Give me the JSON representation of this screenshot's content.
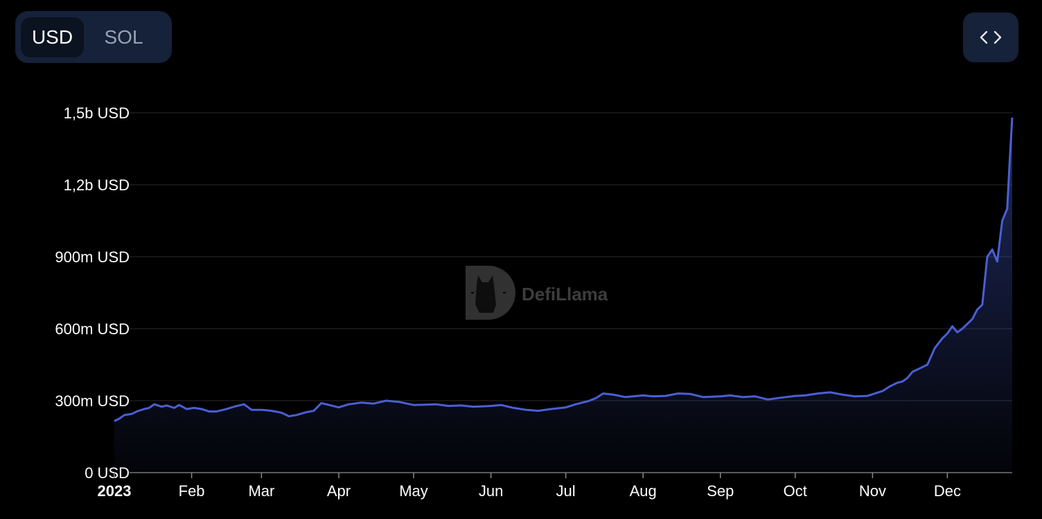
{
  "toolbar": {
    "currency_toggle": {
      "options": [
        "USD",
        "SOL"
      ],
      "selected": "USD"
    },
    "embed_icon": "code-brackets-icon"
  },
  "watermark": {
    "text": "DefiLlama",
    "logo_icon": "defillama-logo-icon"
  },
  "colors": {
    "background": "#000000",
    "line": "#4a5fd6",
    "fill_top": "#3a4ea8",
    "grid": "#2a2a2a",
    "toggle_bg": "#16213a",
    "toggle_active_bg": "#0b1220"
  },
  "chart_data": {
    "type": "area",
    "title": "",
    "xlabel": "",
    "ylabel": "",
    "ylim": [
      0,
      1500000000
    ],
    "y_ticks": [
      {
        "value": 0,
        "label": "0 USD"
      },
      {
        "value": 300000000,
        "label": "300m USD"
      },
      {
        "value": 600000000,
        "label": "600m USD"
      },
      {
        "value": 900000000,
        "label": "900m USD"
      },
      {
        "value": 1200000000,
        "label": "1,2b USD"
      },
      {
        "value": 1500000000,
        "label": "1,5b USD"
      }
    ],
    "x_ticks": [
      {
        "date": "2023-01-01",
        "label": "2023",
        "bold": true
      },
      {
        "date": "2023-02-01",
        "label": "Feb"
      },
      {
        "date": "2023-03-01",
        "label": "Mar"
      },
      {
        "date": "2023-04-01",
        "label": "Apr"
      },
      {
        "date": "2023-05-01",
        "label": "May"
      },
      {
        "date": "2023-06-01",
        "label": "Jun"
      },
      {
        "date": "2023-07-01",
        "label": "Jul"
      },
      {
        "date": "2023-08-01",
        "label": "Aug"
      },
      {
        "date": "2023-09-01",
        "label": "Sep"
      },
      {
        "date": "2023-10-01",
        "label": "Oct"
      },
      {
        "date": "2023-11-01",
        "label": "Nov"
      },
      {
        "date": "2023-12-01",
        "label": "Dec"
      }
    ],
    "xlim": [
      "2023-01-01",
      "2023-12-27"
    ],
    "grid": true,
    "series": [
      {
        "x": [
          "2023-01-01",
          "2023-01-03",
          "2023-01-05",
          "2023-01-08",
          "2023-01-10",
          "2023-01-13",
          "2023-01-15",
          "2023-01-17",
          "2023-01-20",
          "2023-01-22",
          "2023-01-25",
          "2023-01-27",
          "2023-01-30",
          "2023-02-02",
          "2023-02-05",
          "2023-02-08",
          "2023-02-11",
          "2023-02-15",
          "2023-02-18",
          "2023-02-22",
          "2023-02-25",
          "2023-03-01",
          "2023-03-05",
          "2023-03-09",
          "2023-03-12",
          "2023-03-15",
          "2023-03-19",
          "2023-03-22",
          "2023-03-25",
          "2023-04-01",
          "2023-04-05",
          "2023-04-10",
          "2023-04-15",
          "2023-04-20",
          "2023-04-25",
          "2023-05-01",
          "2023-05-05",
          "2023-05-10",
          "2023-05-15",
          "2023-05-20",
          "2023-05-25",
          "2023-06-01",
          "2023-06-05",
          "2023-06-10",
          "2023-06-15",
          "2023-06-20",
          "2023-06-25",
          "2023-07-01",
          "2023-07-05",
          "2023-07-10",
          "2023-07-13",
          "2023-07-16",
          "2023-07-20",
          "2023-07-25",
          "2023-08-01",
          "2023-08-05",
          "2023-08-10",
          "2023-08-15",
          "2023-08-20",
          "2023-08-25",
          "2023-09-01",
          "2023-09-05",
          "2023-09-10",
          "2023-09-15",
          "2023-09-20",
          "2023-09-25",
          "2023-10-01",
          "2023-10-05",
          "2023-10-10",
          "2023-10-15",
          "2023-10-20",
          "2023-10-25",
          "2023-10-30",
          "2023-11-02",
          "2023-11-05",
          "2023-11-08",
          "2023-11-11",
          "2023-11-13",
          "2023-11-15",
          "2023-11-17",
          "2023-11-20",
          "2023-11-23",
          "2023-11-26",
          "2023-11-29",
          "2023-12-01",
          "2023-12-03",
          "2023-12-05",
          "2023-12-07",
          "2023-12-09",
          "2023-12-11",
          "2023-12-13",
          "2023-12-15",
          "2023-12-17",
          "2023-12-19",
          "2023-12-21",
          "2023-12-23",
          "2023-12-25",
          "2023-12-26",
          "2023-12-27"
        ],
        "values": [
          215000000,
          225000000,
          240000000,
          245000000,
          255000000,
          265000000,
          270000000,
          285000000,
          275000000,
          280000000,
          270000000,
          282000000,
          265000000,
          270000000,
          265000000,
          255000000,
          255000000,
          265000000,
          275000000,
          285000000,
          262000000,
          262000000,
          258000000,
          250000000,
          235000000,
          240000000,
          252000000,
          258000000,
          290000000,
          272000000,
          285000000,
          292000000,
          288000000,
          300000000,
          295000000,
          282000000,
          283000000,
          285000000,
          278000000,
          280000000,
          275000000,
          278000000,
          282000000,
          270000000,
          262000000,
          258000000,
          265000000,
          272000000,
          285000000,
          298000000,
          310000000,
          330000000,
          325000000,
          315000000,
          322000000,
          318000000,
          320000000,
          330000000,
          328000000,
          315000000,
          318000000,
          322000000,
          315000000,
          318000000,
          305000000,
          312000000,
          320000000,
          322000000,
          330000000,
          335000000,
          325000000,
          318000000,
          320000000,
          330000000,
          340000000,
          360000000,
          375000000,
          380000000,
          395000000,
          420000000,
          435000000,
          450000000,
          520000000,
          560000000,
          580000000,
          610000000,
          585000000,
          600000000,
          620000000,
          640000000,
          680000000,
          700000000,
          900000000,
          930000000,
          880000000,
          1050000000,
          1100000000,
          1300000000,
          1480000000
        ]
      }
    ]
  }
}
